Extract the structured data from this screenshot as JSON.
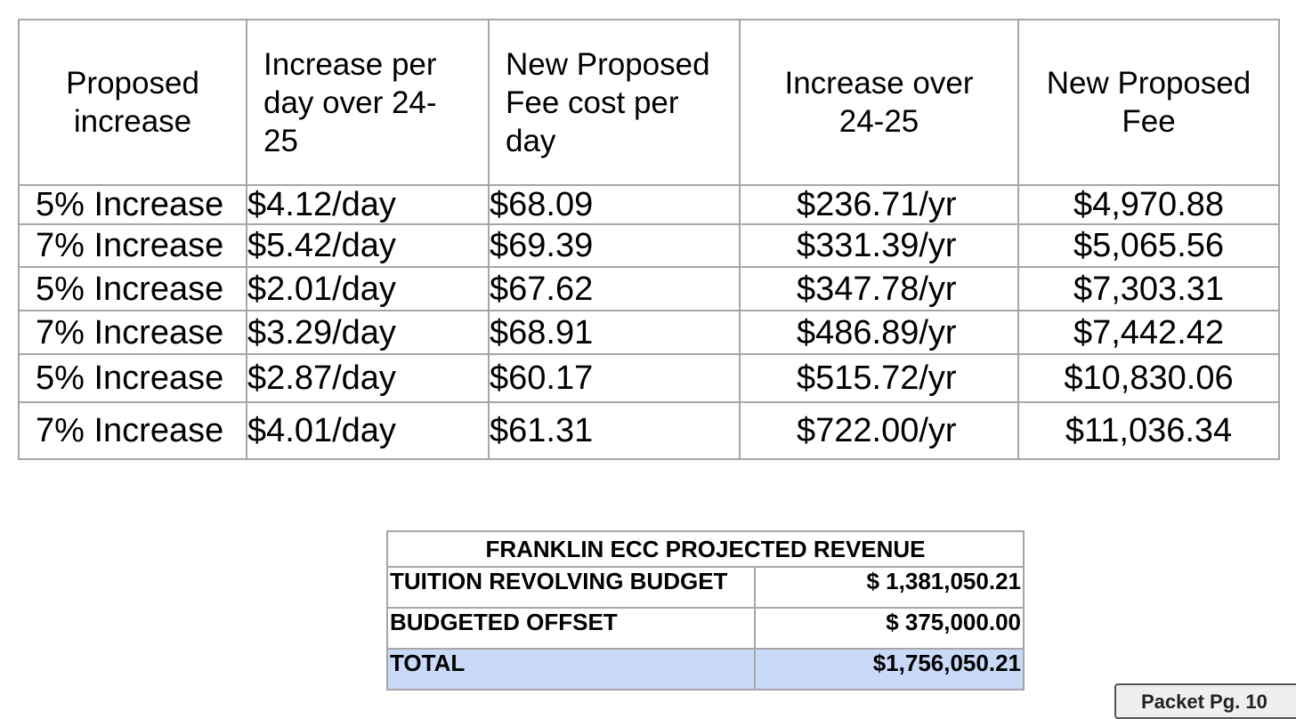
{
  "fee_table": {
    "headers": [
      "Proposed increase",
      "Increase per day over 24-25",
      "New Proposed Fee cost per day",
      "Increase over 24-25",
      "New Proposed Fee"
    ],
    "rows": [
      [
        "5% Increase",
        "$4.12/day",
        "$68.09",
        "$236.71/yr",
        "$4,970.88"
      ],
      [
        "7% Increase",
        "$5.42/day",
        "$69.39",
        "$331.39/yr",
        "$5,065.56"
      ],
      [
        "5% Increase",
        "$2.01/day",
        "$67.62",
        "$347.78/yr",
        "$7,303.31"
      ],
      [
        "7% Increase",
        "$3.29/day",
        "$68.91",
        "$486.89/yr",
        "$7,442.42"
      ],
      [
        "5% Increase",
        "$2.87/day",
        "$60.17",
        "$515.72/yr",
        "$10,830.06"
      ],
      [
        "7% Increase",
        "$4.01/day",
        "$61.31",
        "$722.00/yr",
        "$11,036.34"
      ]
    ]
  },
  "revenue_table": {
    "title": "FRANKLIN ECC PROJECTED REVENUE",
    "rows": [
      {
        "label": "TUITION REVOLVING BUDGET",
        "amount": "$ 1,381,050.21"
      },
      {
        "label": "BUDGETED OFFSET",
        "amount": "$ 375,000.00"
      },
      {
        "label": "TOTAL",
        "amount": "$1,756,050.21"
      }
    ],
    "total_highlight_color": "#c9daf8"
  },
  "packet_tab": {
    "label": "Packet Pg. 10"
  }
}
